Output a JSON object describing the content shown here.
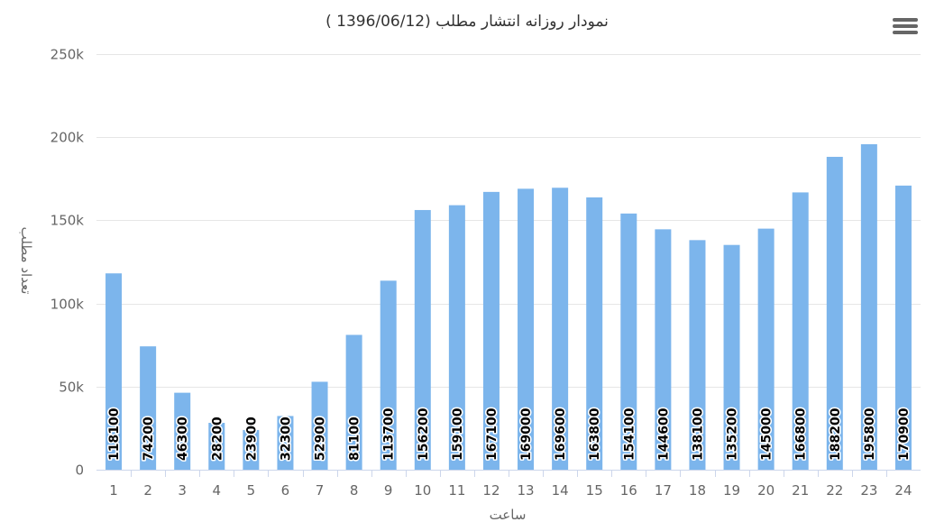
{
  "chart_data": {
    "type": "bar",
    "title": "نمودار روزانه انتشار مطلب (1396/06/12 )",
    "xlabel": "ساعت",
    "ylabel": "تعداد مطلب",
    "categories": [
      "1",
      "2",
      "3",
      "4",
      "5",
      "6",
      "7",
      "8",
      "9",
      "10",
      "11",
      "12",
      "13",
      "14",
      "15",
      "16",
      "17",
      "18",
      "19",
      "20",
      "21",
      "22",
      "23",
      "24"
    ],
    "values": [
      118100,
      74200,
      46300,
      28200,
      23900,
      32300,
      52900,
      81100,
      113700,
      156200,
      159100,
      167100,
      169000,
      169600,
      163800,
      154100,
      144600,
      138100,
      135200,
      145000,
      166800,
      188200,
      195800,
      170900
    ],
    "data_labels": [
      "118100",
      "74200",
      "46300",
      "28200",
      "23900",
      "32300",
      "52900",
      "81100",
      "113700",
      "156200",
      "159100",
      "167100",
      "169000",
      "169600",
      "163800",
      "154100",
      "144600",
      "138100",
      "135200",
      "145000",
      "166800",
      "188200",
      "195800",
      "170900"
    ],
    "ylim": [
      0,
      250000
    ],
    "y_ticks": [
      0,
      50000,
      100000,
      150000,
      200000,
      250000
    ],
    "y_tick_labels": [
      "0",
      "50k",
      "100k",
      "150k",
      "200k",
      "250k"
    ],
    "grid": true,
    "legend": "none",
    "bar_color": "#7cb5ec"
  },
  "toolbar": {
    "menu_icon": "hamburger-menu-icon"
  }
}
